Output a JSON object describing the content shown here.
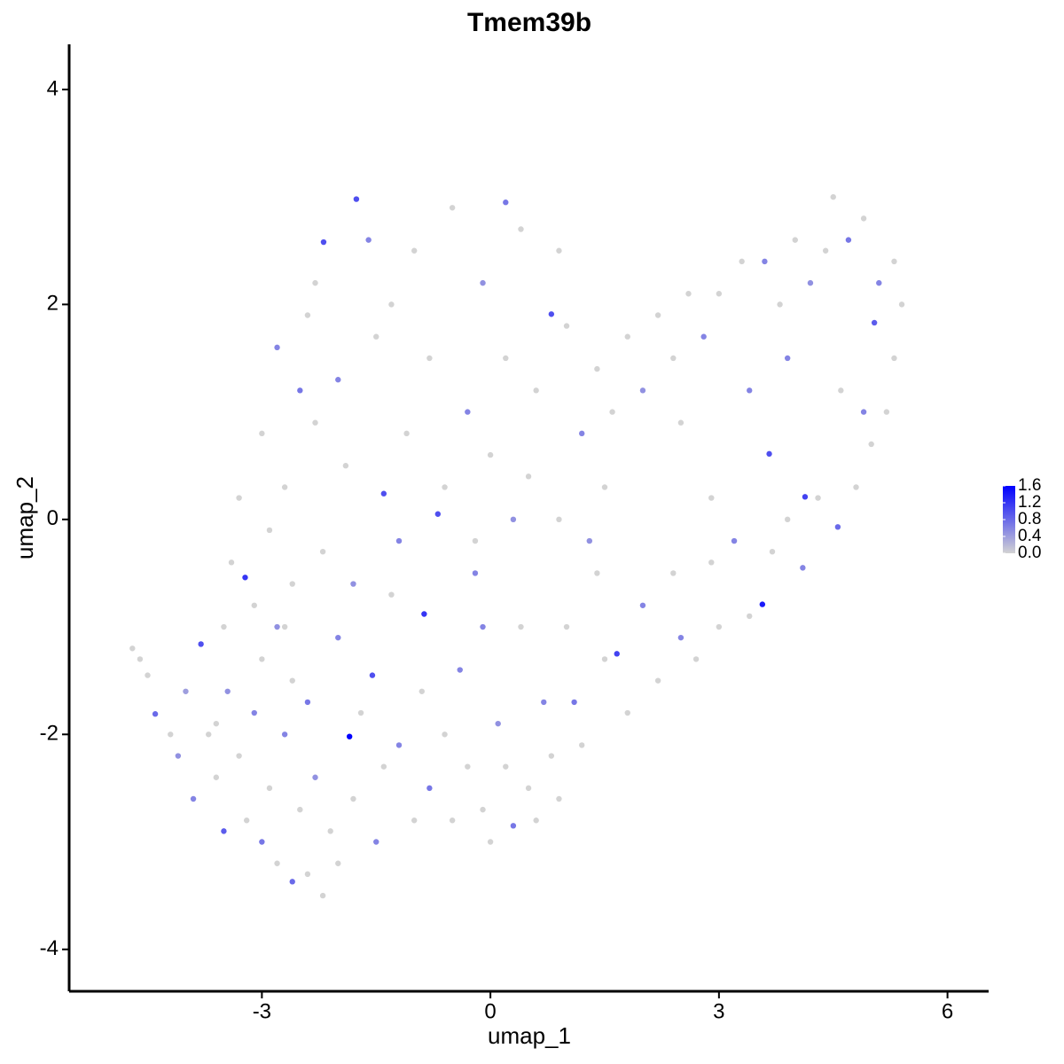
{
  "chart_data": {
    "type": "scatter",
    "title": "Tmem39b",
    "x_label": "umap_1",
    "y_label": "umap_2",
    "xlim": [
      -5.53,
      6.54
    ],
    "ylim": [
      -4.39,
      4.42
    ],
    "xticks": [
      -3,
      0,
      3,
      6
    ],
    "yticks": [
      -4,
      -2,
      0,
      2,
      4
    ],
    "grid": false,
    "colorbar": {
      "lim": [
        0,
        1.6
      ],
      "low_color": "#d3d3d3",
      "high_color": "#0000ff",
      "ticks": [
        {
          "value": 0,
          "label": "0.0"
        },
        0.4,
        0.8,
        1.2,
        1.6
      ]
    },
    "x": [
      -4.7,
      -4.6,
      -4.5,
      -4.4,
      -4.2,
      -4.1,
      -4.0,
      -3.9,
      -3.8,
      -3.7,
      -3.6,
      -3.5,
      -3.45,
      -3.3,
      -3.2,
      -3.1,
      -3.0,
      -3.0,
      -2.9,
      -2.8,
      -2.8,
      -2.7,
      -2.6,
      -2.6,
      -2.5,
      -2.4,
      -2.4,
      -2.3,
      -2.2,
      -2.1,
      -2.0,
      -2.0,
      -1.85,
      -1.8,
      -1.7,
      -1.55,
      -1.5,
      -1.4,
      -1.3,
      -1.2,
      -1.0,
      -0.9,
      -0.87,
      -0.8,
      -0.6,
      -0.5,
      -0.4,
      -0.3,
      -0.2,
      -0.1,
      0,
      0.1,
      0.2,
      0.3,
      0.4,
      0.5,
      0.6,
      0.7,
      0.8,
      0.9,
      1.0,
      1.1,
      1.2,
      1.4,
      1.5,
      1.66,
      1.8,
      2.0,
      2.2,
      2.4,
      2.5,
      2.7,
      2.9,
      3.0,
      3.2,
      3.4,
      3.57,
      3.7,
      3.9,
      4.1,
      4.3,
      4.56,
      4.8,
      5.0,
      5.2,
      5.3,
      5.4,
      5.3,
      5.1,
      4.9,
      4.7,
      4.5,
      4.4,
      4.2,
      4.0,
      3.8,
      3.6,
      3.3,
      3.0,
      2.8,
      2.6,
      2.4,
      2.2,
      2.0,
      1.8,
      1.6,
      1.4,
      1.2,
      1.0,
      0.9,
      0.8,
      0.6,
      0.5,
      0.4,
      0.2,
      0.2,
      0.0,
      -0.1,
      -0.2,
      -0.3,
      -0.5,
      -0.6,
      -0.69,
      -0.8,
      -1.0,
      -1.1,
      -1.2,
      -1.4,
      -1.5,
      -1.6,
      -1.76,
      -1.9,
      -2.0,
      -2.19,
      -2.2,
      -2.3,
      -2.4,
      -2.5,
      -2.6,
      -2.7,
      -2.8,
      -2.9,
      -3.0,
      -3.1,
      -3.22,
      -3.3,
      -3.4,
      -3.5,
      -2.3,
      -1.3,
      0.3,
      1.5,
      2.5,
      3.66,
      4.13,
      4.6,
      3.4,
      2.9,
      5.04,
      4.9,
      0.9,
      -0.1,
      -1.8,
      -3.6,
      -2.7,
      1.3,
      3.9
    ],
    "values": [
      -1.2,
      -1.3,
      -1.45,
      -1.81,
      -2.0,
      -2.2,
      -1.6,
      -2.6,
      -1.16,
      -2.0,
      -2.4,
      -2.9,
      -1.6,
      -2.2,
      -2.8,
      -1.8,
      -3.0,
      -1.3,
      -2.5,
      -1.0,
      -3.2,
      -2.0,
      -3.37,
      -1.5,
      -2.7,
      -3.3,
      -1.7,
      -2.4,
      -3.5,
      -2.9,
      -1.1,
      -3.2,
      -2.02,
      -2.6,
      -1.8,
      -1.45,
      -3.0,
      -2.3,
      -0.7,
      -2.1,
      -2.8,
      -1.6,
      -0.88,
      -2.5,
      -2.0,
      -2.8,
      -1.4,
      -2.3,
      -0.5,
      -2.7,
      -3.0,
      -1.9,
      -2.3,
      -2.85,
      -1.0,
      -2.5,
      -2.8,
      -1.7,
      -2.2,
      -2.6,
      -1.0,
      -1.7,
      -2.1,
      -0.5,
      -1.3,
      -1.25,
      -1.8,
      -0.8,
      -1.5,
      -0.5,
      -1.1,
      -1.3,
      -0.4,
      -1.0,
      -0.2,
      -0.9,
      -0.79,
      -0.3,
      0.0,
      -0.45,
      0.2,
      -0.07,
      0.3,
      0.7,
      1.0,
      1.5,
      2.0,
      2.4,
      2.2,
      2.8,
      2.6,
      3.0,
      2.5,
      2.2,
      2.6,
      2.0,
      2.4,
      2.4,
      2.1,
      1.7,
      2.1,
      1.5,
      1.9,
      1.2,
      1.7,
      1.0,
      1.4,
      0.8,
      1.8,
      2.5,
      1.91,
      1.2,
      0.4,
      2.7,
      2.95,
      1.5,
      0.6,
      2.2,
      -0.2,
      1.0,
      2.9,
      0.3,
      0.05,
      1.5,
      2.5,
      0.8,
      -0.2,
      0.24,
      1.7,
      2.6,
      2.98,
      0.5,
      1.3,
      2.58,
      -0.3,
      0.9,
      1.9,
      1.2,
      -0.6,
      0.3,
      1.6,
      -0.1,
      0.8,
      -0.8,
      -0.54,
      0.2,
      -0.4,
      -1.0,
      2.2,
      2.0,
      0.0,
      0.3,
      0.9,
      0.61,
      0.21,
      1.2,
      1.2,
      0.2,
      1.83,
      1.0,
      0.0,
      -1.0,
      -0.6,
      -1.9,
      -1.0,
      -0.2,
      1.5
    ],
    "expression": [
      0,
      0,
      0,
      0.8,
      0,
      0.5,
      0.4,
      0.6,
      1.0,
      0,
      0,
      0.9,
      0.5,
      0,
      0,
      0.6,
      0.7,
      0,
      0,
      0.5,
      0,
      0.6,
      0.8,
      0,
      0,
      0,
      0.7,
      0.5,
      0,
      0,
      0.6,
      0,
      1.6,
      0,
      0,
      1.0,
      0.6,
      0,
      0,
      0.6,
      0,
      0,
      1.2,
      0.7,
      0,
      0,
      0.6,
      0,
      0.6,
      0,
      0,
      0.5,
      0,
      0.7,
      0,
      0,
      0,
      0.6,
      0,
      0,
      0,
      0.7,
      0,
      0,
      0,
      1.1,
      0,
      0.6,
      0,
      0,
      0.6,
      0,
      0,
      0,
      0.6,
      0,
      1.4,
      0,
      0,
      0.6,
      0,
      0.8,
      0,
      0,
      0,
      0,
      0,
      0,
      0.6,
      0,
      0.7,
      0,
      0,
      0.5,
      0,
      0,
      0.6,
      0,
      0,
      0.6,
      0,
      0,
      0,
      0.5,
      0,
      0,
      0,
      0.6,
      0,
      0,
      1.0,
      0,
      0,
      0,
      0.7,
      0,
      0,
      0.5,
      0,
      0.6,
      0,
      0,
      1.0,
      0,
      0,
      0,
      0.6,
      1.0,
      0,
      0.6,
      1.0,
      0,
      0.6,
      1.0,
      0,
      0,
      0,
      0.7,
      0,
      0,
      0.6,
      0,
      0,
      0,
      1.2,
      0,
      0,
      0,
      0,
      0,
      0.5,
      0,
      0,
      1.0,
      1.1,
      0,
      0.6,
      0,
      0.9,
      0.6,
      0,
      0.6,
      0.5,
      0,
      0,
      0.5,
      0.6
    ]
  }
}
